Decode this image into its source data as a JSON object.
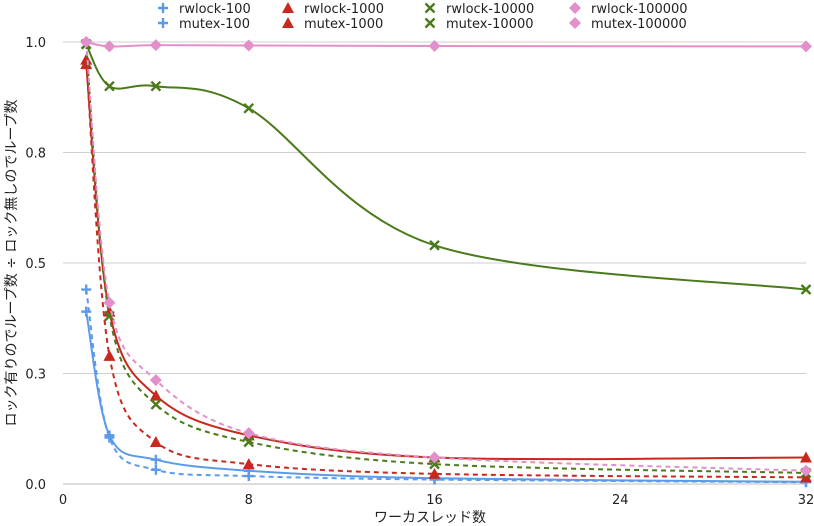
{
  "chart_data": {
    "type": "line",
    "title": "",
    "xlabel": "ワーカスレッド数",
    "ylabel": "ロック有りのでループ数 ÷ ロック無しのでループ数",
    "xlim": [
      0,
      32
    ],
    "ylim": [
      0,
      1
    ],
    "xticks": [
      0,
      8,
      16,
      24,
      32
    ],
    "xtick_labels": [
      "0",
      "8",
      "16",
      "24",
      "32"
    ],
    "yticks": [
      0,
      0.25,
      0.5,
      0.75,
      1.0
    ],
    "ytick_labels": [
      "0.0",
      "0.3",
      "0.5",
      "0.8",
      "1.0"
    ],
    "grid": true,
    "legend_position": "top",
    "x": [
      1,
      2,
      4,
      8,
      16,
      32
    ],
    "series": [
      {
        "name": "rwlock-100",
        "color": "#5b9bea",
        "marker": "plus",
        "dash": false,
        "values": [
          0.39,
          0.11,
          0.055,
          0.03,
          0.013,
          0.005
        ]
      },
      {
        "name": "mutex-100",
        "color": "#5b9bea",
        "marker": "plus",
        "dash": true,
        "values": [
          0.44,
          0.105,
          0.032,
          0.018,
          0.01,
          0.004
        ]
      },
      {
        "name": "rwlock-1000",
        "color": "#c8281e",
        "marker": "triangle",
        "dash": false,
        "values": [
          0.95,
          0.39,
          0.2,
          0.11,
          0.06,
          0.06
        ]
      },
      {
        "name": "mutex-1000",
        "color": "#c8281e",
        "marker": "triangle",
        "dash": true,
        "values": [
          0.96,
          0.29,
          0.095,
          0.045,
          0.023,
          0.015
        ]
      },
      {
        "name": "rwlock-10000",
        "color": "#4a7a1a",
        "marker": "x",
        "dash": false,
        "values": [
          0.995,
          0.9,
          0.9,
          0.85,
          0.54,
          0.44
        ]
      },
      {
        "name": "mutex-10000",
        "color": "#4a7a1a",
        "marker": "x",
        "dash": true,
        "values": [
          0.995,
          0.38,
          0.18,
          0.095,
          0.045,
          0.025
        ]
      },
      {
        "name": "rwlock-100000",
        "color": "#e28fcc",
        "marker": "diamond",
        "dash": false,
        "values": [
          1.0,
          0.99,
          0.993,
          0.992,
          0.991,
          0.99
        ]
      },
      {
        "name": "mutex-100000",
        "color": "#e28fcc",
        "marker": "diamond",
        "dash": true,
        "values": [
          1.0,
          0.41,
          0.235,
          0.115,
          0.06,
          0.03
        ]
      }
    ]
  }
}
